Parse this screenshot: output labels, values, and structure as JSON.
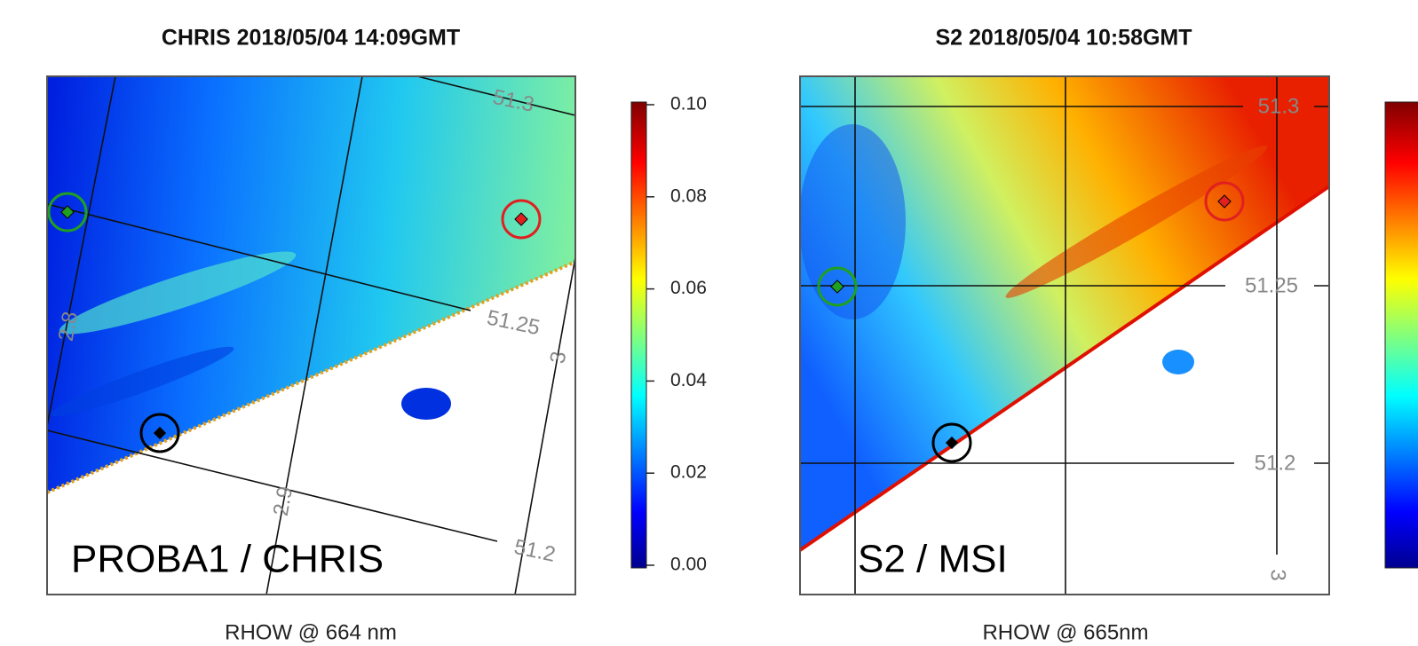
{
  "panels": [
    {
      "title": "CHRIS 2018/05/04 14:09GMT",
      "label": "PROBA1 / CHRIS",
      "x_label": "RHOW @ 664 nm",
      "grid_labels": [
        "51.3",
        "51.25",
        "51.2",
        "2.8",
        "2.9",
        "3"
      ]
    },
    {
      "title": "S2 2018/05/04 10:58GMT",
      "label": "S2 / MSI",
      "x_label": "RHOW @ 665nm",
      "grid_labels": [
        "51.3",
        "51.25",
        "51.2",
        "3"
      ]
    }
  ],
  "colorbar": {
    "lim": [
      0,
      0.1
    ],
    "ticks": [
      {
        "value": 0,
        "label": "0.00"
      },
      {
        "value": 0.02,
        "label": "0.02"
      },
      {
        "value": 0.04,
        "label": "0.04"
      },
      {
        "value": 0.06,
        "label": "0.06"
      },
      {
        "value": 0.08,
        "label": "0.08"
      },
      {
        "value": 0.1,
        "label": "0.10"
      }
    ]
  }
}
